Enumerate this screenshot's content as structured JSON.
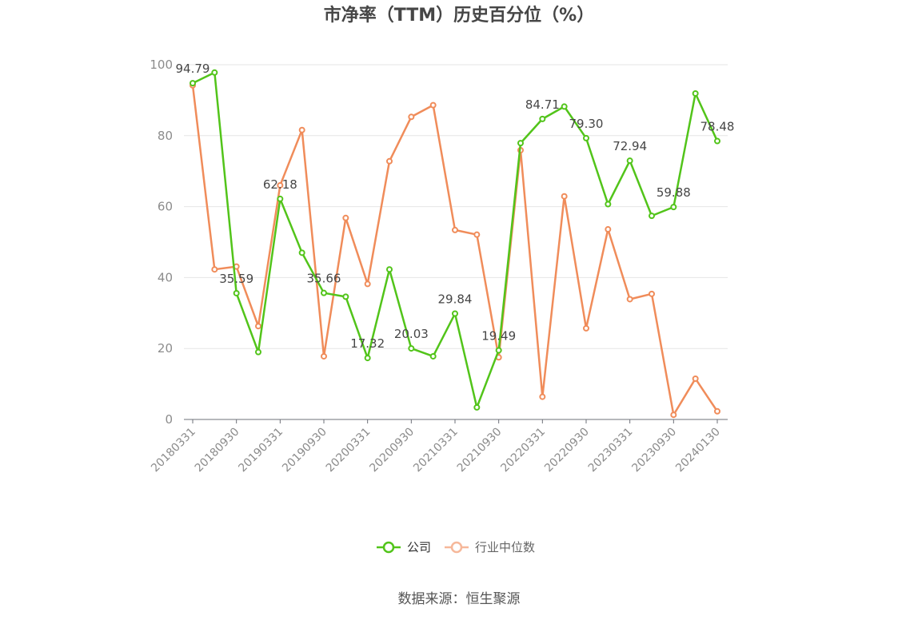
{
  "chart_data": {
    "type": "line",
    "title": "市净率（TTM）历史百分位（%）",
    "source": "数据来源：恒生聚源",
    "ylim": [
      0,
      100
    ],
    "yticks": [
      0,
      20,
      40,
      60,
      80,
      100
    ],
    "xtick_labels": [
      "20180331",
      "20180930",
      "20190331",
      "20190930",
      "20200331",
      "20200930",
      "20210331",
      "20210930",
      "20220331",
      "20220930",
      "20230331",
      "20230930",
      "20240130"
    ],
    "grid": true,
    "legend_position": "bottom-center",
    "series": [
      {
        "name": "公司",
        "color": "#52c41a",
        "values": [
          94.79,
          97.8,
          35.59,
          19.0,
          62.18,
          47.0,
          35.66,
          34.6,
          17.32,
          42.3,
          20.03,
          17.8,
          29.84,
          3.4,
          19.49,
          77.9,
          84.71,
          88.2,
          79.3,
          60.7,
          72.94,
          57.4,
          59.88,
          91.9,
          78.48
        ],
        "labels": {
          "0": "94.79",
          "2": "35.59",
          "4": "62.18",
          "6": "35.66",
          "8": "17.32",
          "10": "20.03",
          "12": "29.84",
          "14": "19.49",
          "16": "84.71",
          "18": "79.30",
          "20": "72.94",
          "22": "59.88",
          "24": "78.48"
        }
      },
      {
        "name": "行业中位数",
        "color": "#f08c5a",
        "values": [
          94.2,
          42.3,
          43.1,
          26.3,
          66.0,
          81.6,
          17.8,
          56.8,
          38.2,
          72.8,
          85.3,
          88.6,
          53.4,
          52.1,
          17.5,
          75.9,
          6.4,
          62.9,
          25.7,
          53.6,
          33.9,
          35.4,
          1.3,
          11.5,
          2.3
        ]
      }
    ]
  }
}
